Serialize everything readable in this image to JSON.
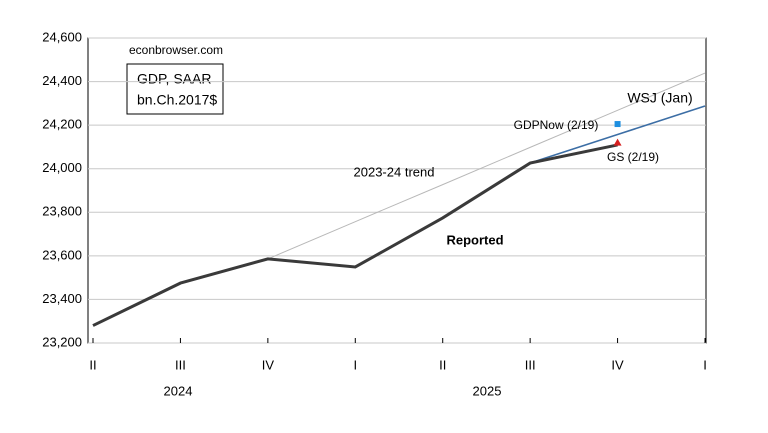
{
  "chart_data": {
    "type": "line",
    "source": "econbrowser.com",
    "box_lines": [
      "GDP, SAAR",
      "bn.Ch.2017$"
    ],
    "categories": [
      "II",
      "III",
      "IV",
      "I",
      "II",
      "III",
      "IV",
      "I"
    ],
    "years": [
      "2024",
      "2025"
    ],
    "ylim": [
      23200,
      24600
    ],
    "yticks": [
      {
        "value": 23200,
        "label": "23,200"
      },
      {
        "value": 23400,
        "label": "23,400"
      },
      {
        "value": 23600,
        "label": "23,600"
      },
      {
        "value": 23800,
        "label": "23,800"
      },
      {
        "value": 24000,
        "label": "24,000"
      },
      {
        "value": 24200,
        "label": "24,200"
      },
      {
        "value": 24400,
        "label": "24,400"
      },
      {
        "value": 24600,
        "label": "24,600"
      }
    ],
    "grid": true,
    "series": [
      {
        "name": "2023-24 trend",
        "color": "#b8b8b8",
        "values": [
          null,
          null,
          23586,
          23757,
          23927,
          24098,
          24268,
          24439
        ]
      },
      {
        "name": "WSJ (Jan)",
        "color": "#3c6ea5",
        "values": [
          null,
          null,
          null,
          null,
          null,
          24026,
          24157,
          24288
        ]
      },
      {
        "name": "Reported",
        "color": "#3a3a3a",
        "values": [
          23280,
          23475,
          23586,
          23549,
          23774,
          24026,
          24109,
          null
        ]
      },
      {
        "name": "GDPNow (2/19)",
        "color": "#1e8fe0",
        "marker": "square",
        "values": [
          null,
          null,
          null,
          null,
          null,
          null,
          24205,
          null
        ]
      },
      {
        "name": "GS (2/19)",
        "color": "#d62020",
        "marker": "triangle",
        "values": [
          null,
          null,
          null,
          null,
          null,
          null,
          24120,
          null
        ]
      }
    ]
  }
}
